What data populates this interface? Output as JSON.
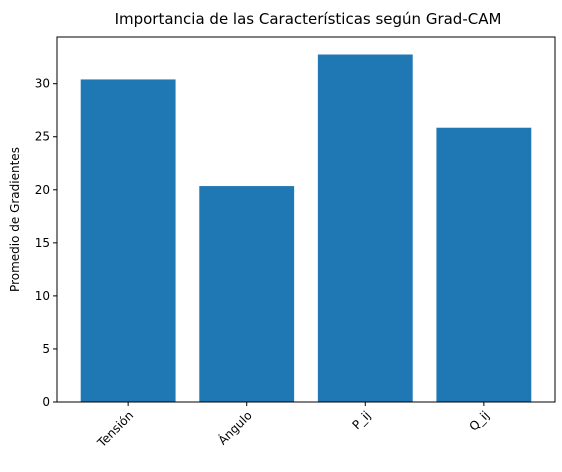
{
  "chart_data": {
    "type": "bar",
    "title": "Importancia de las Características según Grad-CAM",
    "xlabel": "",
    "ylabel": "Promedio de Gradientes",
    "categories": [
      "Tensión",
      "Ángulo",
      "P_ij",
      "Q_ij"
    ],
    "values": [
      30.4,
      20.35,
      32.75,
      25.85
    ],
    "ylim": [
      0,
      34.4
    ],
    "yticks": [
      0,
      5,
      10,
      15,
      20,
      25,
      30
    ],
    "ytick_labels": [
      "0",
      "5",
      "10",
      "15",
      "20",
      "25",
      "30"
    ],
    "xtick_rotation_deg": 45,
    "grid": false,
    "legend": "none",
    "bar_color": "#1f77b4"
  }
}
